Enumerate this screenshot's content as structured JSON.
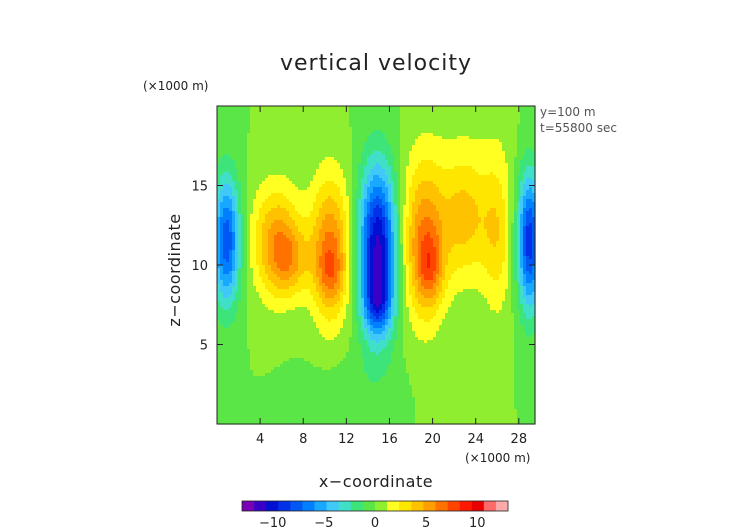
{
  "chart_data": {
    "type": "heatmap",
    "title": "vertical velocity",
    "xlabel": "x−coordinate",
    "ylabel": "z−coordinate",
    "x_unit": "(×1000 m)",
    "y_unit": "(×1000 m)",
    "annotations": [
      "y=100 m",
      "t=55800 sec"
    ],
    "xlim": [
      0,
      29.5
    ],
    "ylim": [
      0,
      20
    ],
    "x_ticks": [
      4,
      8,
      12,
      16,
      20,
      24,
      28
    ],
    "y_ticks": [
      5,
      10,
      15
    ],
    "grid": false,
    "colorbar": {
      "range": [
        -13,
        13
      ],
      "ticks": [
        -10,
        -5,
        0,
        5,
        10
      ],
      "tick_labels": [
        "−10",
        "−5",
        "0",
        "5",
        "10"
      ],
      "colors": [
        "#7a00b4",
        "#3a00c8",
        "#0010d0",
        "#0030e8",
        "#0058f4",
        "#0080ff",
        "#18a8ff",
        "#40c8f8",
        "#40e0c8",
        "#3ce47a",
        "#5ae646",
        "#90ee30",
        "#ffff22",
        "#ffe600",
        "#ffc200",
        "#ff9e00",
        "#ff7200",
        "#ff4400",
        "#ff1800",
        "#e80000",
        "#ff6a6a",
        "#ffaaaa"
      ],
      "placement": "bottom"
    },
    "background_value": 0,
    "features": [
      {
        "x": 0.9,
        "z": 11.5,
        "sx": 0.9,
        "sz": 2.8,
        "v": -8
      },
      {
        "x": 5.5,
        "z": 11.5,
        "sx": 1.6,
        "sz": 2.5,
        "v": 5
      },
      {
        "x": 6.8,
        "z": 10.3,
        "sx": 1.2,
        "sz": 1.5,
        "v": 3
      },
      {
        "x": 10.5,
        "z": 11.0,
        "sx": 1.3,
        "sz": 3.2,
        "v": 6
      },
      {
        "x": 10.5,
        "z": 9.5,
        "sx": 0.9,
        "sz": 1.3,
        "v": 2
      },
      {
        "x": 14.9,
        "z": 11.0,
        "sx": 1.2,
        "sz": 3.6,
        "v": -11
      },
      {
        "x": 14.9,
        "z": 7.6,
        "sx": 0.9,
        "sz": 1.2,
        "v": -4
      },
      {
        "x": 19.2,
        "z": 11.5,
        "sx": 1.4,
        "sz": 3.5,
        "v": 6
      },
      {
        "x": 19.8,
        "z": 9.8,
        "sx": 0.8,
        "sz": 1.5,
        "v": 3
      },
      {
        "x": 23.0,
        "z": 13.0,
        "sx": 1.6,
        "sz": 2.8,
        "v": 4
      },
      {
        "x": 26.0,
        "z": 12.0,
        "sx": 1.0,
        "sz": 3.5,
        "v": 3
      },
      {
        "x": 29.0,
        "z": 11.5,
        "sx": 0.8,
        "sz": 3.0,
        "v": -9
      },
      {
        "x": 12.5,
        "z": 2.5,
        "sx": 3.0,
        "sz": 1.5,
        "v": -0.6
      },
      {
        "x": 23.0,
        "z": 17.5,
        "sx": 4.0,
        "sz": 1.5,
        "v": 0.4
      }
    ]
  }
}
